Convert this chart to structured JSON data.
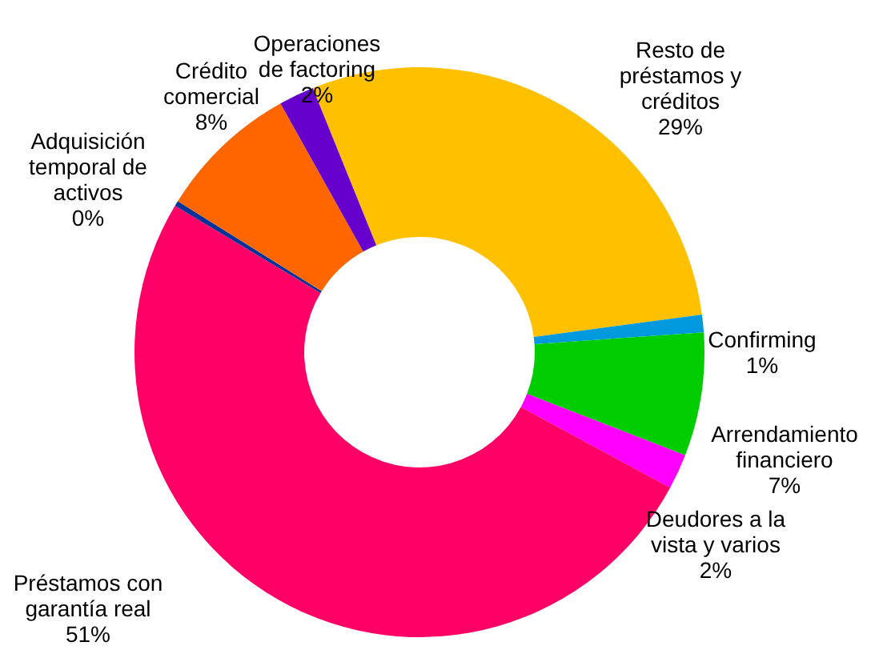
{
  "chart_data": {
    "type": "donut",
    "categories": [
      "Resto de préstamos y créditos",
      "Confirming",
      "Arrendamiento financiero",
      "Deudores a la vista y varios",
      "Préstamos con garantía real",
      "Adquisición temporal de activos",
      "Crédito comercial",
      "Operaciones de factoring"
    ],
    "values": [
      29,
      1,
      7,
      2,
      50.7,
      0.3,
      8,
      2
    ],
    "value_labels": [
      "29%",
      "1%",
      "7%",
      "2%",
      "51%",
      "0%",
      "8%",
      "2%"
    ],
    "colors": [
      "#ffc000",
      "#0099dd",
      "#00cc00",
      "#ff00ff",
      "#ff0066",
      "#003399",
      "#ff6600",
      "#6600cc"
    ],
    "legend": false
  }
}
